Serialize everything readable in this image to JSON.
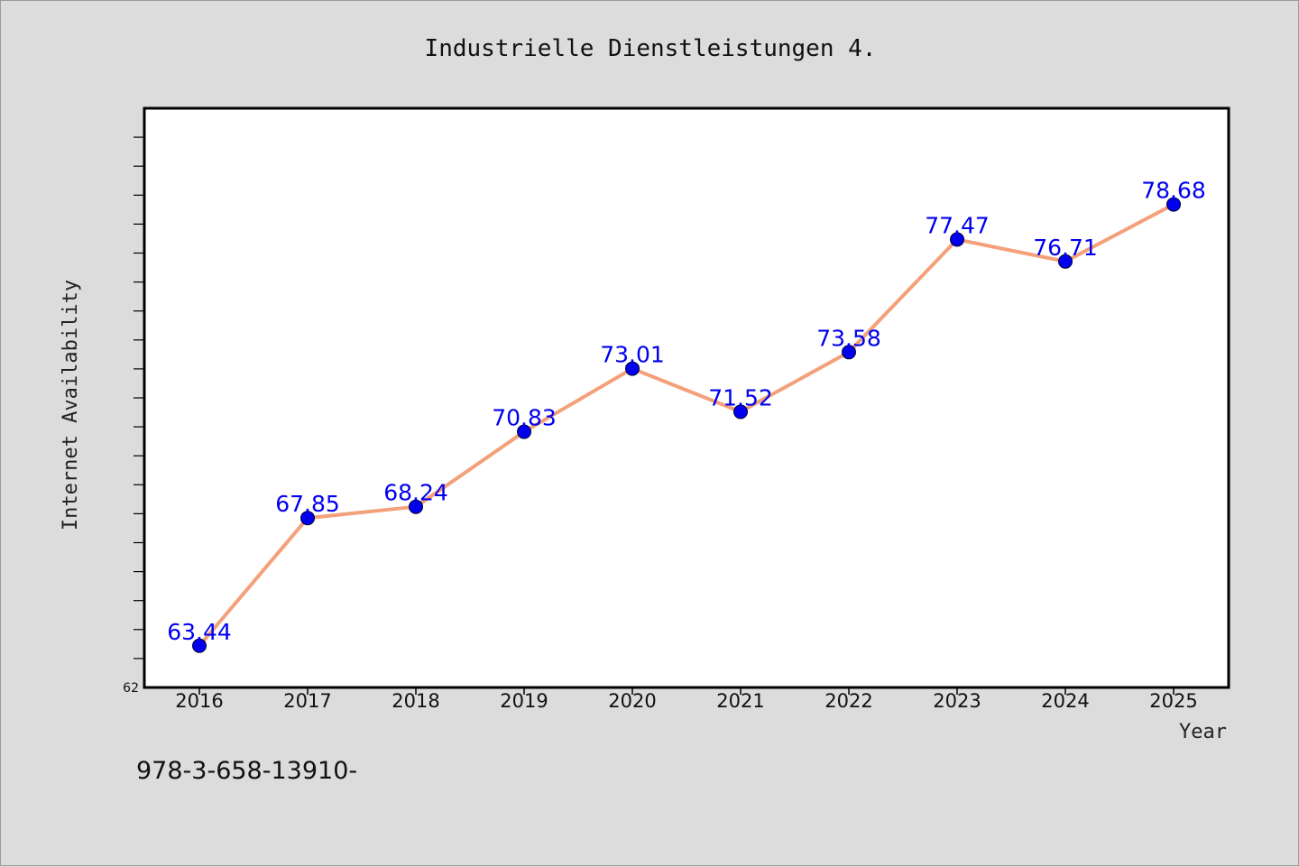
{
  "page": {
    "footer_text": "978-3-658-13910-"
  },
  "chart_data": {
    "type": "line",
    "title": "Industrielle Dienstleistungen 4.",
    "xlabel": "Year",
    "ylabel": "Internet Availability",
    "categories": [
      "2016",
      "2017",
      "2018",
      "2019",
      "2020",
      "2021",
      "2022",
      "2023",
      "2024",
      "2025"
    ],
    "series": [
      {
        "values": [
          63.44,
          67.85,
          68.24,
          70.83,
          73.01,
          71.52,
          73.58,
          77.47,
          76.71,
          78.68
        ],
        "labels": [
          "63.44",
          "67.85",
          "68.24",
          "70.83",
          "73.01",
          "71.52",
          "73.58",
          "77.47",
          "76.71",
          "78.68"
        ],
        "line_color": "#f4a07a",
        "marker_color": "#0000ee"
      }
    ],
    "ylim": [
      62,
      82
    ],
    "ytick_labels": [
      "62"
    ],
    "grid": false,
    "legend": "none"
  }
}
